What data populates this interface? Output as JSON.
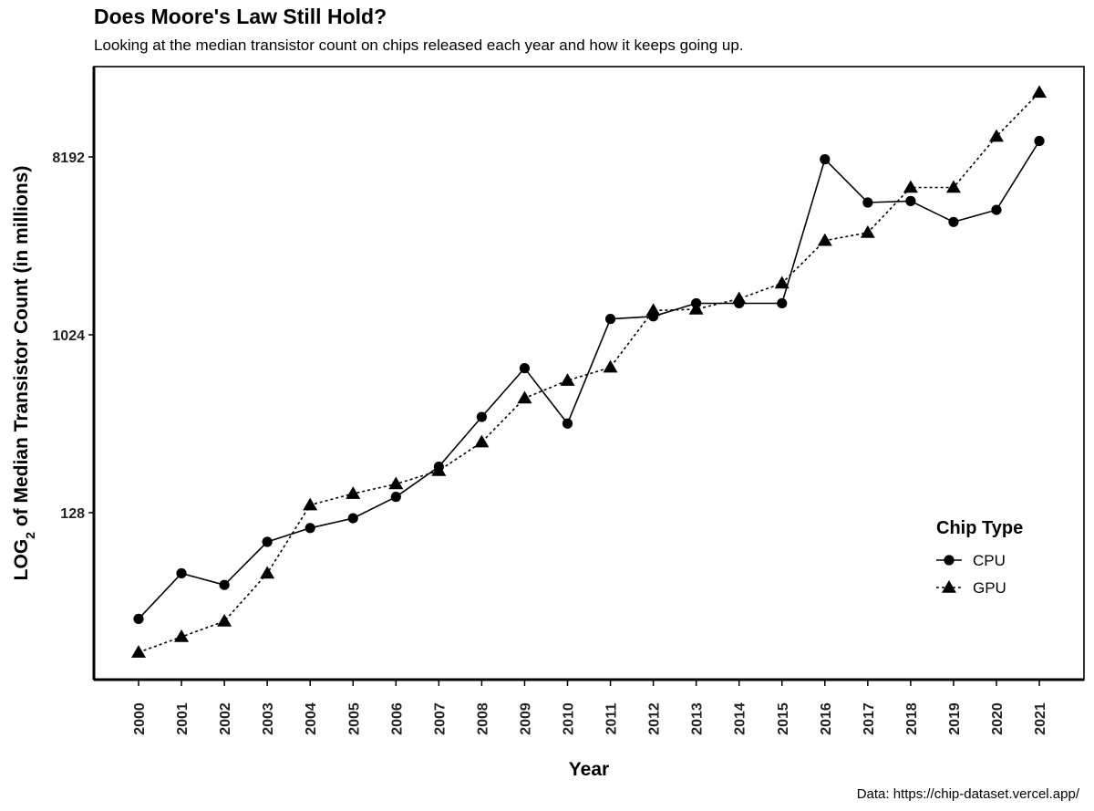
{
  "chart_data": {
    "type": "line",
    "title": "Does Moore's Law Still Hold?",
    "subtitle": "Looking at the median transistor count on chips released each year and how it keeps going up.",
    "caption": "Data: https://chip-dataset.vercel.app/",
    "xlabel": "Year",
    "ylabel": {
      "prefix": "LOG",
      "subscript": "2",
      "suffix": " of Median Transistor Count (in millions)"
    },
    "y_scale": "log2",
    "yticks": [
      128,
      1024,
      8192
    ],
    "ylim": [
      18,
      23000
    ],
    "categories": [
      "2000",
      "2001",
      "2002",
      "2003",
      "2004",
      "2005",
      "2006",
      "2007",
      "2008",
      "2009",
      "2010",
      "2011",
      "2012",
      "2013",
      "2014",
      "2015",
      "2016",
      "2017",
      "2018",
      "2019",
      "2020",
      "2021"
    ],
    "legend": {
      "title": "Chip Type",
      "position": "right"
    },
    "grid": false,
    "series": [
      {
        "name": "CPU",
        "marker": "circle",
        "line": "solid",
        "values": [
          37,
          63,
          55,
          91,
          107,
          120,
          154,
          219,
          392,
          693,
          363,
          1232,
          1270,
          1480,
          1480,
          1480,
          7966,
          4805,
          4890,
          3830,
          4410,
          9870
        ]
      },
      {
        "name": "GPU",
        "marker": "triangle",
        "line": "dotted",
        "values": [
          25,
          30,
          36,
          63,
          140,
          160,
          179,
          209,
          292,
          488,
          600,
          700,
          1360,
          1380,
          1560,
          1870,
          3080,
          3380,
          5730,
          5730,
          10400,
          17400
        ]
      }
    ]
  }
}
